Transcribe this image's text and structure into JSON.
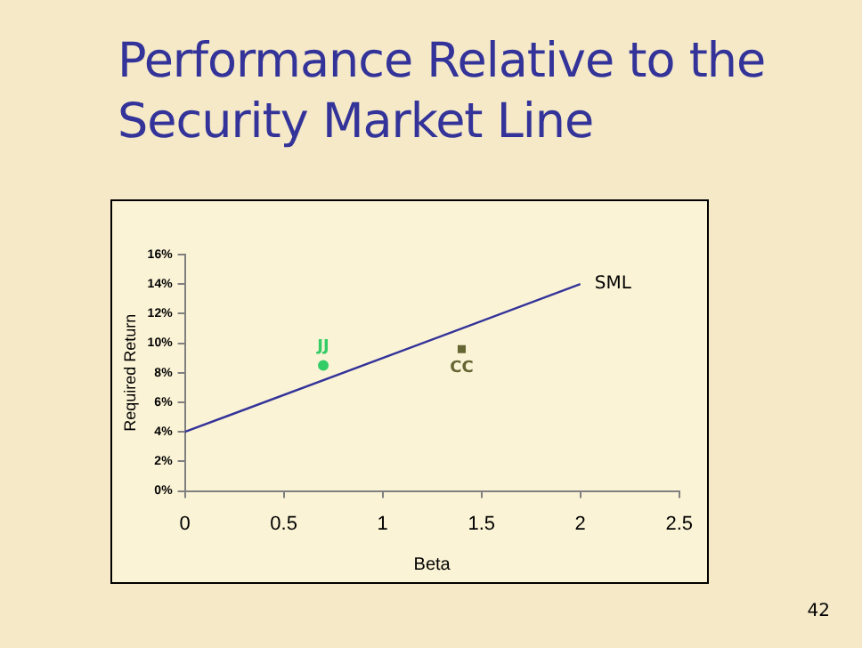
{
  "chart_data": {
    "type": "scatter",
    "title": "Performance Relative to the Security Market Line",
    "xlabel": "Beta",
    "ylabel": "Required Return",
    "xlim": [
      0,
      2.5
    ],
    "xticks": [
      0,
      0.5,
      1,
      1.5,
      2,
      2.5
    ],
    "ylim": [
      0,
      16
    ],
    "yticks": [
      {
        "value": 0,
        "label": "0%"
      },
      {
        "value": 2,
        "label": "2%"
      },
      {
        "value": 4,
        "label": "4%"
      },
      {
        "value": 6,
        "label": "6%"
      },
      {
        "value": 8,
        "label": "8%"
      },
      {
        "value": 10,
        "label": "10%"
      },
      {
        "value": 12,
        "label": "12%"
      },
      {
        "value": 14,
        "label": "14%"
      },
      {
        "value": 16,
        "label": "16%"
      }
    ],
    "grid": false,
    "legend": false,
    "series": [
      {
        "name": "SML",
        "type": "line",
        "color": "#333399",
        "x": [
          0,
          2
        ],
        "values": [
          4,
          14
        ],
        "marker": "none",
        "line_style": "solid"
      },
      {
        "name": "JJ",
        "color": "#33cc66",
        "x": [
          0.7
        ],
        "values": [
          8.5
        ],
        "marker": "circle"
      },
      {
        "name": "CC",
        "color": "#666633",
        "x": [
          1.4
        ],
        "values": [
          9.6
        ],
        "marker": "square"
      }
    ],
    "annotations": [
      "42"
    ]
  }
}
